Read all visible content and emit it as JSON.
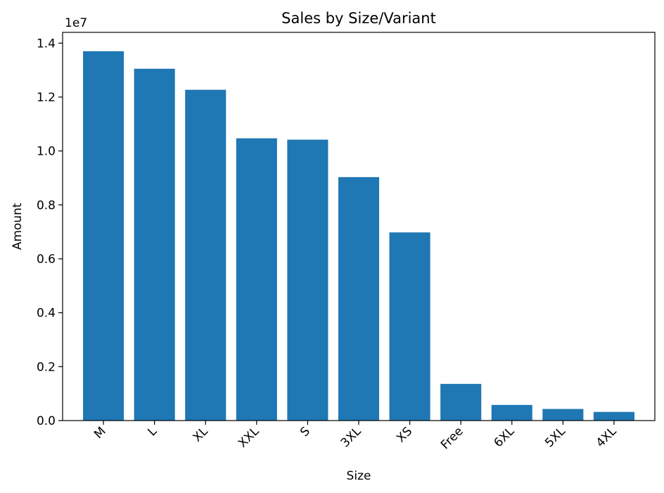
{
  "chart_data": {
    "type": "bar",
    "title": "Sales by Size/Variant",
    "xlabel": "Size",
    "ylabel": "Amount",
    "y_offset_label": "1e7",
    "y_scale": 10000000,
    "categories": [
      "M",
      "L",
      "XL",
      "XXL",
      "S",
      "3XL",
      "XS",
      "Free",
      "6XL",
      "5XL",
      "4XL"
    ],
    "values": [
      13700000,
      13050000,
      12270000,
      10470000,
      10420000,
      9030000,
      6980000,
      1360000,
      580000,
      430000,
      320000
    ],
    "ylim": [
      0,
      14400000
    ],
    "yticks": [
      0.0,
      0.2,
      0.4,
      0.6,
      0.8,
      1.0,
      1.2,
      1.4
    ],
    "ytick_labels": [
      "0.0",
      "0.2",
      "0.4",
      "0.6",
      "0.8",
      "1.0",
      "1.2",
      "1.4"
    ],
    "bar_color": "#1f77b4",
    "grid": false,
    "legend": "none"
  }
}
